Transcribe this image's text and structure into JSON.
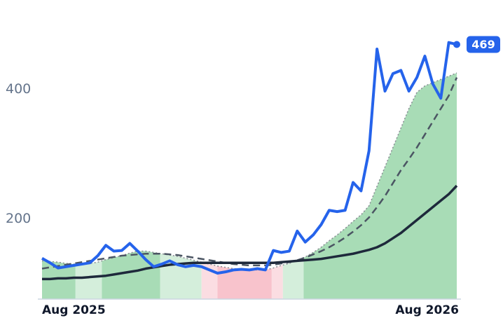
{
  "chart_data": {
    "type": "line",
    "x": [
      0,
      1,
      2,
      3,
      4,
      5,
      6,
      7,
      8,
      9,
      10,
      11,
      12,
      13,
      14,
      15,
      16,
      17,
      18,
      19,
      20,
      21,
      22,
      23,
      24,
      25,
      26,
      27,
      28,
      29,
      30,
      31,
      32,
      33,
      34,
      35,
      36,
      37,
      38,
      39,
      40,
      41,
      42,
      43,
      44,
      45,
      46,
      47,
      48,
      49,
      50,
      51,
      52
    ],
    "xlim": [
      0,
      52
    ],
    "xticks": [
      {
        "value": 0,
        "label": "Aug 2025"
      },
      {
        "value": 52,
        "label": "Aug 2026"
      }
    ],
    "ylim": [
      76,
      516
    ],
    "yticks": [
      200,
      400
    ],
    "series": [
      {
        "color": "#2563eb",
        "style": "solid",
        "values": [
          139,
          132,
          124,
          126,
          128,
          130,
          132,
          143,
          159,
          150,
          151,
          162,
          150,
          137,
          126,
          130,
          135,
          129,
          126,
          128,
          126,
          121,
          116,
          118,
          121,
          122,
          121,
          123,
          121,
          151,
          148,
          150,
          181,
          164,
          175,
          191,
          213,
          211,
          213,
          256,
          243,
          305,
          462,
          397,
          424,
          429,
          397,
          418,
          451,
          408,
          386,
          472,
          469
        ]
      },
      {
        "color": "#8b8f96",
        "style": "dotted",
        "values": [
          135,
          134,
          133,
          131,
          130,
          130,
          131,
          133,
          137,
          140,
          143,
          147,
          150,
          150,
          148,
          146,
          144,
          142,
          139,
          136,
          133,
          130,
          127,
          125,
          123,
          122,
          121,
          121,
          121,
          124,
          128,
          131,
          136,
          141,
          148,
          156,
          166,
          175,
          185,
          196,
          206,
          220,
          250,
          280,
          310,
          340,
          370,
          395,
          405,
          410,
          415,
          420,
          425
        ]
      },
      {
        "color": "#4b5563",
        "style": "dashed",
        "values": [
          123,
          125,
          127,
          129,
          131,
          133,
          135,
          137,
          139,
          141,
          143,
          144,
          145,
          146,
          146,
          146,
          145,
          144,
          142,
          140,
          138,
          136,
          134,
          132,
          130,
          129,
          128,
          128,
          128,
          129,
          131,
          133,
          136,
          140,
          145,
          150,
          156,
          163,
          171,
          180,
          190,
          202,
          218,
          235,
          255,
          275,
          292,
          310,
          330,
          350,
          370,
          390,
          418
        ]
      },
      {
        "color": "#1e293b",
        "style": "solid",
        "values": [
          107,
          107,
          108,
          108,
          109,
          109,
          110,
          111,
          112,
          114,
          116,
          118,
          120,
          123,
          125,
          127,
          129,
          130,
          131,
          132,
          132,
          132,
          132,
          132,
          132,
          132,
          132,
          132,
          132,
          132,
          133,
          134,
          135,
          136,
          137,
          138,
          140,
          142,
          144,
          146,
          149,
          152,
          156,
          162,
          170,
          178,
          188,
          198,
          208,
          218,
          228,
          238,
          251
        ]
      }
    ],
    "bands": [
      {
        "start": 0,
        "end": 4.2,
        "color": "#a8dcb6"
      },
      {
        "start": 4.2,
        "end": 7.5,
        "color": "#d4eedb"
      },
      {
        "start": 7.5,
        "end": 14.8,
        "color": "#a8dcb6"
      },
      {
        "start": 14.8,
        "end": 20,
        "color": "#d4eedb"
      },
      {
        "start": 20,
        "end": 22,
        "color": "#fbdde2"
      },
      {
        "start": 22,
        "end": 28.8,
        "color": "#f8c3cc"
      },
      {
        "start": 28.8,
        "end": 30.2,
        "color": "#fbdde2"
      },
      {
        "start": 30.2,
        "end": 32.8,
        "color": "#d4eedb"
      },
      {
        "start": 32.8,
        "end": 52,
        "color": "#a8dcb6"
      }
    ],
    "grid": false
  }
}
